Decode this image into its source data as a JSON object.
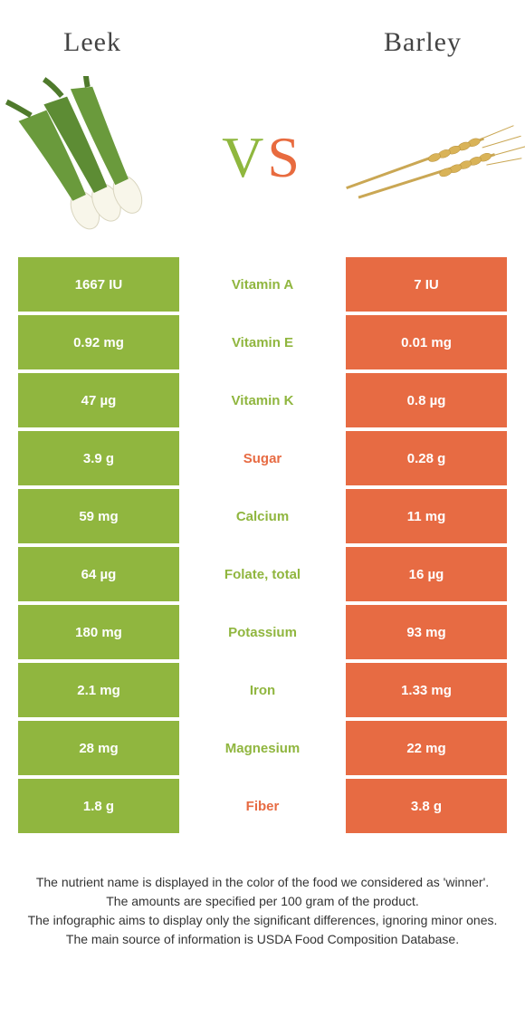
{
  "header": {
    "left_title": "Leek",
    "right_title": "Barley"
  },
  "vs": {
    "v": "V",
    "s": "S"
  },
  "colors": {
    "green": "#90b63f",
    "orange": "#e76b43",
    "white": "#ffffff",
    "text_dark": "#444444"
  },
  "table": {
    "rows": [
      {
        "left": "1667 IU",
        "mid": "Vitamin A",
        "right": "7 IU",
        "winner": "left"
      },
      {
        "left": "0.92 mg",
        "mid": "Vitamin E",
        "right": "0.01 mg",
        "winner": "left"
      },
      {
        "left": "47 µg",
        "mid": "Vitamin K",
        "right": "0.8 µg",
        "winner": "left"
      },
      {
        "left": "3.9 g",
        "mid": "Sugar",
        "right": "0.28 g",
        "winner": "right"
      },
      {
        "left": "59 mg",
        "mid": "Calcium",
        "right": "11 mg",
        "winner": "left"
      },
      {
        "left": "64 µg",
        "mid": "Folate, total",
        "right": "16 µg",
        "winner": "left"
      },
      {
        "left": "180 mg",
        "mid": "Potassium",
        "right": "93 mg",
        "winner": "left"
      },
      {
        "left": "2.1 mg",
        "mid": "Iron",
        "right": "1.33 mg",
        "winner": "left"
      },
      {
        "left": "28 mg",
        "mid": "Magnesium",
        "right": "22 mg",
        "winner": "left"
      },
      {
        "left": "1.8 g",
        "mid": "Fiber",
        "right": "3.8 g",
        "winner": "right"
      }
    ]
  },
  "footer": {
    "line1": "The nutrient name is displayed in the color of the food we considered as 'winner'.",
    "line2": "The amounts are specified per 100 gram of the product.",
    "line3": "The infographic aims to display only the significant differences, ignoring minor ones.",
    "line4": "The main source of information is USDA Food Composition Database."
  }
}
